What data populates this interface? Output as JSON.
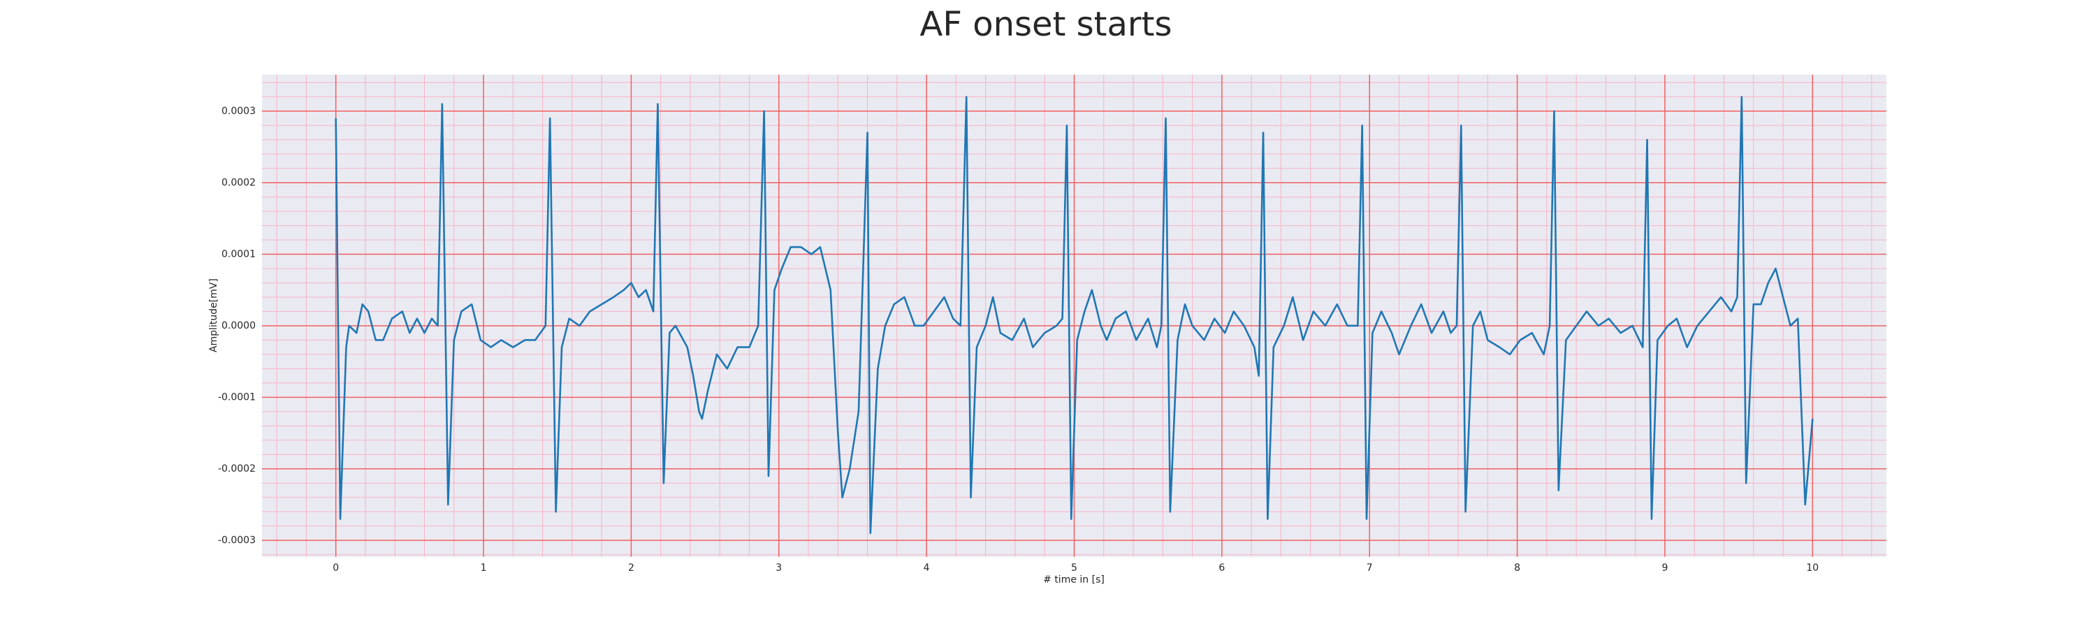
{
  "chart_data": {
    "type": "line",
    "title": "AF onset starts",
    "xlabel": "# time in [s]",
    "ylabel": "Amplitude[mV]",
    "color": "#1f77b4",
    "grid": true,
    "minor_grid": true,
    "xlim": [
      -0.5,
      10.5
    ],
    "ylim": [
      -0.000323,
      0.000351
    ],
    "xticks": [
      0,
      1,
      2,
      3,
      4,
      5,
      6,
      7,
      8,
      9,
      10
    ],
    "yticks": [
      -0.0003,
      -0.0002,
      -0.0001,
      {
        "value": 0,
        "label": "0.0000"
      },
      0.0001,
      0.0002,
      0.0003
    ],
    "x": [
      0,
      0.03,
      0.07,
      0.09,
      0.14,
      0.18,
      0.22,
      0.27,
      0.32,
      0.38,
      0.45,
      0.5,
      0.55,
      0.6,
      0.65,
      0.69,
      0.72,
      0.76,
      0.8,
      0.85,
      0.92,
      0.98,
      1.05,
      1.12,
      1.2,
      1.28,
      1.35,
      1.42,
      1.45,
      1.49,
      1.53,
      1.58,
      1.65,
      1.72,
      1.8,
      1.88,
      1.95,
      2.0,
      2.05,
      2.1,
      2.15,
      2.18,
      2.22,
      2.26,
      2.3,
      2.38,
      2.42,
      2.46,
      2.48,
      2.52,
      2.58,
      2.65,
      2.72,
      2.8,
      2.86,
      2.9,
      2.93,
      2.97,
      3.02,
      3.08,
      3.15,
      3.22,
      3.28,
      3.35,
      3.4,
      3.43,
      3.48,
      3.54,
      3.6,
      3.62,
      3.67,
      3.72,
      3.78,
      3.85,
      3.92,
      3.98,
      4.05,
      4.12,
      4.18,
      4.23,
      4.27,
      4.3,
      4.34,
      4.4,
      4.45,
      4.5,
      4.58,
      4.66,
      4.72,
      4.8,
      4.88,
      4.92,
      4.95,
      4.98,
      5.02,
      5.07,
      5.12,
      5.18,
      5.22,
      5.28,
      5.35,
      5.42,
      5.5,
      5.56,
      5.59,
      5.62,
      5.65,
      5.7,
      5.75,
      5.8,
      5.88,
      5.95,
      6.02,
      6.08,
      6.15,
      6.22,
      6.25,
      6.28,
      6.31,
      6.35,
      6.42,
      6.48,
      6.55,
      6.62,
      6.7,
      6.78,
      6.85,
      6.92,
      6.95,
      6.98,
      7.02,
      7.08,
      7.15,
      7.2,
      7.28,
      7.35,
      7.42,
      7.5,
      7.55,
      7.59,
      7.62,
      7.65,
      7.7,
      7.75,
      7.8,
      7.88,
      7.95,
      8.02,
      8.1,
      8.18,
      8.22,
      8.25,
      8.28,
      8.33,
      8.4,
      8.47,
      8.55,
      8.62,
      8.7,
      8.78,
      8.85,
      8.88,
      8.91,
      8.95,
      9.02,
      9.08,
      9.15,
      9.22,
      9.3,
      9.38,
      9.45,
      9.49,
      9.52,
      9.55,
      9.6,
      9.65,
      9.7,
      9.75,
      9.8,
      9.85,
      9.9,
      9.95,
      10.0
    ],
    "values": [
      0.00029,
      -0.00027,
      -3e-05,
      0.0,
      -1e-05,
      3e-05,
      2e-05,
      -2e-05,
      -2e-05,
      1e-05,
      2e-05,
      -1e-05,
      1e-05,
      -1e-05,
      1e-05,
      0.0,
      0.00031,
      -0.00025,
      -2e-05,
      2e-05,
      3e-05,
      -2e-05,
      -3e-05,
      -2e-05,
      -3e-05,
      -2e-05,
      -2e-05,
      0.0,
      0.00029,
      -0.00026,
      -3e-05,
      1e-05,
      0.0,
      2e-05,
      3e-05,
      4e-05,
      5e-05,
      6e-05,
      4e-05,
      5e-05,
      2e-05,
      0.00031,
      -0.00022,
      -1e-05,
      0.0,
      -3e-05,
      -7e-05,
      -0.00012,
      -0.00013,
      -9e-05,
      -4e-05,
      -6e-05,
      -3e-05,
      -3e-05,
      0.0,
      0.0003,
      -0.00021,
      5e-05,
      8e-05,
      0.00011,
      0.00011,
      0.0001,
      0.00011,
      5e-05,
      -0.00015,
      -0.00024,
      -0.0002,
      -0.00012,
      0.00027,
      -0.00029,
      -6e-05,
      0.0,
      3e-05,
      4e-05,
      0.0,
      0.0,
      2e-05,
      4e-05,
      1e-05,
      0.0,
      0.00032,
      -0.00024,
      -3e-05,
      0.0,
      4e-05,
      -1e-05,
      -2e-05,
      1e-05,
      -3e-05,
      -1e-05,
      0.0,
      1e-05,
      0.00028,
      -0.00027,
      -2e-05,
      2e-05,
      5e-05,
      0.0,
      -2e-05,
      1e-05,
      2e-05,
      -2e-05,
      1e-05,
      -3e-05,
      0.0,
      0.00029,
      -0.00026,
      -2e-05,
      3e-05,
      0.0,
      -2e-05,
      1e-05,
      -1e-05,
      2e-05,
      0.0,
      -3e-05,
      -7e-05,
      0.00027,
      -0.00027,
      -3e-05,
      0.0,
      4e-05,
      -2e-05,
      2e-05,
      0.0,
      3e-05,
      0.0,
      0.0,
      0.00028,
      -0.00027,
      -1e-05,
      2e-05,
      -1e-05,
      -4e-05,
      0.0,
      3e-05,
      -1e-05,
      2e-05,
      -1e-05,
      0.0,
      0.00028,
      -0.00026,
      0.0,
      2e-05,
      -2e-05,
      -3e-05,
      -4e-05,
      -2e-05,
      -1e-05,
      -4e-05,
      0.0,
      0.0003,
      -0.00023,
      -2e-05,
      0.0,
      2e-05,
      0.0,
      1e-05,
      -1e-05,
      0.0,
      -3e-05,
      0.00026,
      -0.00027,
      -2e-05,
      0.0,
      1e-05,
      -3e-05,
      0.0,
      2e-05,
      4e-05,
      2e-05,
      4e-05,
      0.00032,
      -0.00022,
      3e-05,
      3e-05,
      6e-05,
      8e-05,
      4e-05,
      0.0,
      1e-05,
      -0.00025,
      -0.00013
    ]
  }
}
